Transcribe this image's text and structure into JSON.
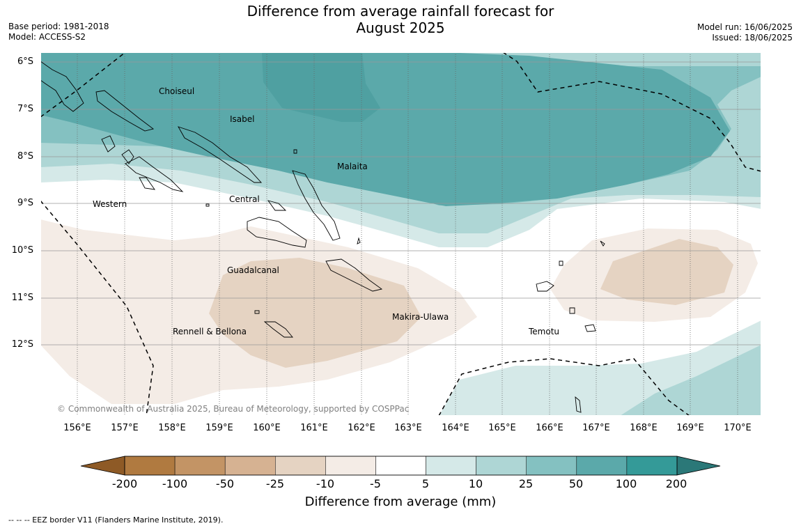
{
  "title_line1": "Difference from average rainfall forecast for",
  "title_line2": "August 2025",
  "base_period": "Base period: 1981-2018",
  "model": "Model: ACCESS-S2",
  "model_run": "Model run: 16/06/2025",
  "issued": "Issued: 18/06/2025",
  "lat_labels": [
    "6°S",
    "7°S",
    "8°S",
    "9°S",
    "10°S",
    "11°S",
    "12°S"
  ],
  "lon_labels": [
    "156°E",
    "157°E",
    "158°E",
    "159°E",
    "160°E",
    "161°E",
    "162°E",
    "163°E",
    "164°E",
    "165°E",
    "166°E",
    "167°E",
    "168°E",
    "169°E",
    "170°E"
  ],
  "regions": {
    "choiseul": "Choiseul",
    "isabel": "Isabel",
    "malaita": "Malaita",
    "western": "Western",
    "central": "Central",
    "guadalcanal": "Guadalcanal",
    "makira_ulawa": "Makira-Ulawa",
    "rennell_bellona": "Rennell & Bellona",
    "temotu": "Temotu"
  },
  "copyright": "© Commonwealth of Australia 2025, Bureau of Meteorology, supported by COSPPac",
  "colorbar": {
    "ticks": [
      "-200",
      "-100",
      "-50",
      "-25",
      "-10",
      "-5",
      "5",
      "10",
      "25",
      "50",
      "100",
      "200"
    ],
    "colors": [
      "#b07a40",
      "#c39465",
      "#d6b292",
      "#e5d3c2",
      "#f4ece6",
      "#ffffff",
      "#d5e9e8",
      "#aed6d5",
      "#84c1c1",
      "#5ba9aa",
      "#349a98"
    ],
    "under_color": "#8e5a26",
    "over_color": "#2b7878",
    "label": "Difference from average (mm)"
  },
  "footnote": "--  --  -- EEZ border V11 (Flanders Marine Institute, 2019)."
}
